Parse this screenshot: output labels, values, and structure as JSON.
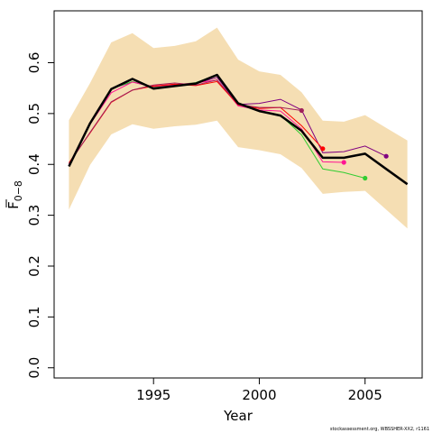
{
  "chart_data": {
    "type": "line",
    "xlabel": "Year",
    "ylabel_main": "F",
    "ylabel_sub": "0−8",
    "xlim": [
      1990.3,
      2007.7
    ],
    "ylim": [
      -0.02,
      0.702
    ],
    "x_ticks": [
      1995,
      2000,
      2005
    ],
    "x_tick_labels": [
      "1995",
      "2000",
      "2005"
    ],
    "y_ticks": [
      0.0,
      0.1,
      0.2,
      0.3,
      0.4,
      0.5,
      0.6
    ],
    "y_tick_labels": [
      "0.0",
      "0.1",
      "0.2",
      "0.3",
      "0.4",
      "0.5",
      "0.6"
    ],
    "grid": false,
    "confidence_band": {
      "color": "#f5deb3",
      "x": [
        1991,
        1992,
        1993,
        1994,
        1995,
        1996,
        1997,
        1998,
        1999,
        2000,
        2001,
        2002,
        2003,
        2004,
        2005,
        2006,
        2007
      ],
      "upper": [
        0.487,
        0.56,
        0.64,
        0.658,
        0.629,
        0.633,
        0.642,
        0.669,
        0.606,
        0.583,
        0.576,
        0.542,
        0.486,
        0.484,
        0.497,
        0.472,
        0.447
      ],
      "lower": [
        0.311,
        0.399,
        0.459,
        0.479,
        0.47,
        0.475,
        0.478,
        0.486,
        0.434,
        0.428,
        0.42,
        0.393,
        0.342,
        0.346,
        0.348,
        0.311,
        0.274
      ]
    },
    "main_series": {
      "color": "#000000",
      "x": [
        1991,
        1992,
        1993,
        1994,
        1995,
        1996,
        1997,
        1998,
        1999,
        2000,
        2001,
        2002,
        2003,
        2004,
        2005,
        2006,
        2007
      ],
      "values": [
        0.396,
        0.481,
        0.548,
        0.568,
        0.549,
        0.554,
        0.559,
        0.576,
        0.52,
        0.505,
        0.496,
        0.466,
        0.413,
        0.413,
        0.421,
        0.391,
        0.361
      ]
    },
    "retro_series": [
      {
        "color": "#800080",
        "x": [
          1991,
          1992,
          1993,
          1994,
          1995,
          1996,
          1997,
          1998,
          1999,
          2000,
          2001,
          2002,
          2003,
          2004,
          2005,
          2006
        ],
        "values": [
          0.399,
          0.481,
          0.549,
          0.562,
          0.552,
          0.556,
          0.559,
          0.571,
          0.518,
          0.52,
          0.528,
          0.507,
          0.423,
          0.425,
          0.436,
          0.416
        ]
      },
      {
        "color": "#32cd32",
        "x": [
          1991,
          1992,
          1993,
          1994,
          1995,
          1996,
          1997,
          1998,
          1999,
          2000,
          2001,
          2002,
          2003,
          2004,
          2005
        ],
        "values": [
          0.398,
          0.481,
          0.549,
          0.563,
          0.552,
          0.556,
          0.561,
          0.576,
          0.519,
          0.505,
          0.497,
          0.458,
          0.391,
          0.384,
          0.373
        ]
      },
      {
        "color": "#ff1493",
        "x": [
          1991,
          1992,
          1993,
          1994,
          1995,
          1996,
          1997,
          1998,
          1999,
          2000,
          2001,
          2002,
          2003,
          2004
        ],
        "values": [
          0.399,
          0.479,
          0.541,
          0.562,
          0.553,
          0.557,
          0.56,
          0.566,
          0.515,
          0.507,
          0.505,
          0.47,
          0.405,
          0.404
        ]
      },
      {
        "color": "#ff0000",
        "x": [
          1991,
          1992,
          1993,
          1994,
          1995,
          1996,
          1997,
          1998,
          1999,
          2000,
          2001,
          2002,
          2003
        ],
        "values": [
          0.403,
          0.462,
          0.522,
          0.546,
          0.554,
          0.558,
          0.555,
          0.563,
          0.517,
          0.51,
          0.512,
          0.476,
          0.431
        ]
      },
      {
        "color": "#a0205a",
        "x": [
          1991,
          1992,
          1993,
          1994,
          1995,
          1996,
          1997,
          1998,
          1999,
          2000,
          2001,
          2002
        ],
        "values": [
          0.401,
          0.463,
          0.523,
          0.546,
          0.556,
          0.56,
          0.556,
          0.566,
          0.518,
          0.512,
          0.512,
          0.506
        ]
      }
    ],
    "credit": "stockassessment.org, WBSSHER-XX2, r1161"
  }
}
